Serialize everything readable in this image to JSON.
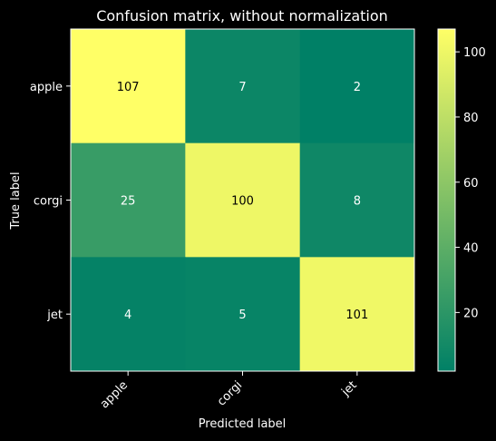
{
  "chart_data": {
    "type": "heatmap",
    "title": "Confusion matrix, without normalization",
    "xlabel": "Predicted label",
    "ylabel": "True label",
    "x_categories": [
      "apple",
      "corgi",
      "jet"
    ],
    "y_categories": [
      "apple",
      "corgi",
      "jet"
    ],
    "values": [
      [
        107,
        7,
        2
      ],
      [
        25,
        100,
        8
      ],
      [
        4,
        5,
        101
      ]
    ],
    "colormap": "summer",
    "colormap_range": [
      2,
      107
    ],
    "colorbar_ticks": [
      20,
      40,
      60,
      80,
      100
    ]
  },
  "colors": {
    "background": "#000000",
    "text": "#ffffff",
    "low": "#008066",
    "high": "#ffff66"
  }
}
